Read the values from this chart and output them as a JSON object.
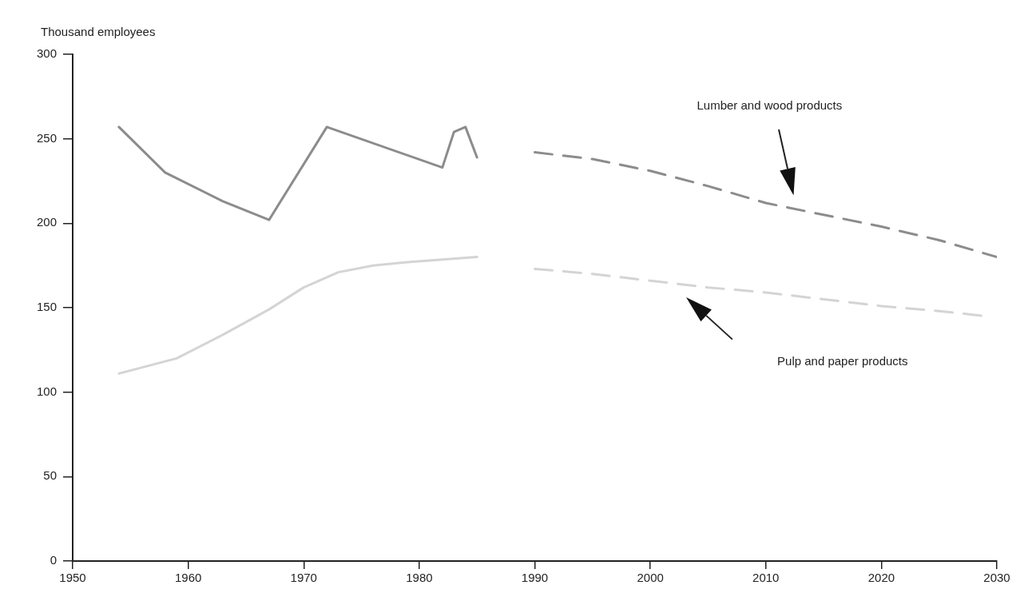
{
  "chart_data": {
    "type": "line",
    "ylabel": "Thousand employees",
    "xlim": [
      1950,
      2030
    ],
    "xticks": [
      1950,
      1960,
      1970,
      1980,
      1990,
      2000,
      2010,
      2020,
      2030
    ],
    "ylim": [
      0,
      300
    ],
    "yticks": [
      0,
      50,
      100,
      150,
      200,
      250,
      300
    ],
    "grid": false,
    "legend": false,
    "marker": "none",
    "series": [
      {
        "color": "#8c8c8c",
        "line_style": "solid",
        "x": [
          1954,
          1958,
          1963,
          1967,
          1972,
          1982,
          1983,
          1984,
          1985
        ],
        "values": [
          257,
          230,
          213,
          202,
          257,
          233,
          254,
          257,
          239
        ]
      },
      {
        "color": "#8c8c8c",
        "line_style": "dashed",
        "x": [
          1990,
          1995,
          2000,
          2005,
          2010,
          2015,
          2020,
          2025,
          2030
        ],
        "values": [
          242,
          238,
          231,
          222,
          212,
          205,
          198,
          190,
          180
        ]
      },
      {
        "color": "#d4d4d4",
        "line_style": "solid",
        "x": [
          1954,
          1959,
          1963,
          1967,
          1970,
          1973,
          1976,
          1979,
          1985
        ],
        "values": [
          111,
          120,
          134,
          149,
          162,
          171,
          175,
          177,
          180
        ]
      },
      {
        "color": "#d4d4d4",
        "line_style": "dashed",
        "x": [
          1990,
          1995,
          2000,
          2005,
          2010,
          2015,
          2020,
          2025,
          2029
        ],
        "values": [
          173,
          170,
          166,
          162,
          159,
          155,
          151,
          148,
          145
        ]
      }
    ],
    "annotations": [
      "Lumber and wood products",
      "Pulp and paper products"
    ]
  }
}
